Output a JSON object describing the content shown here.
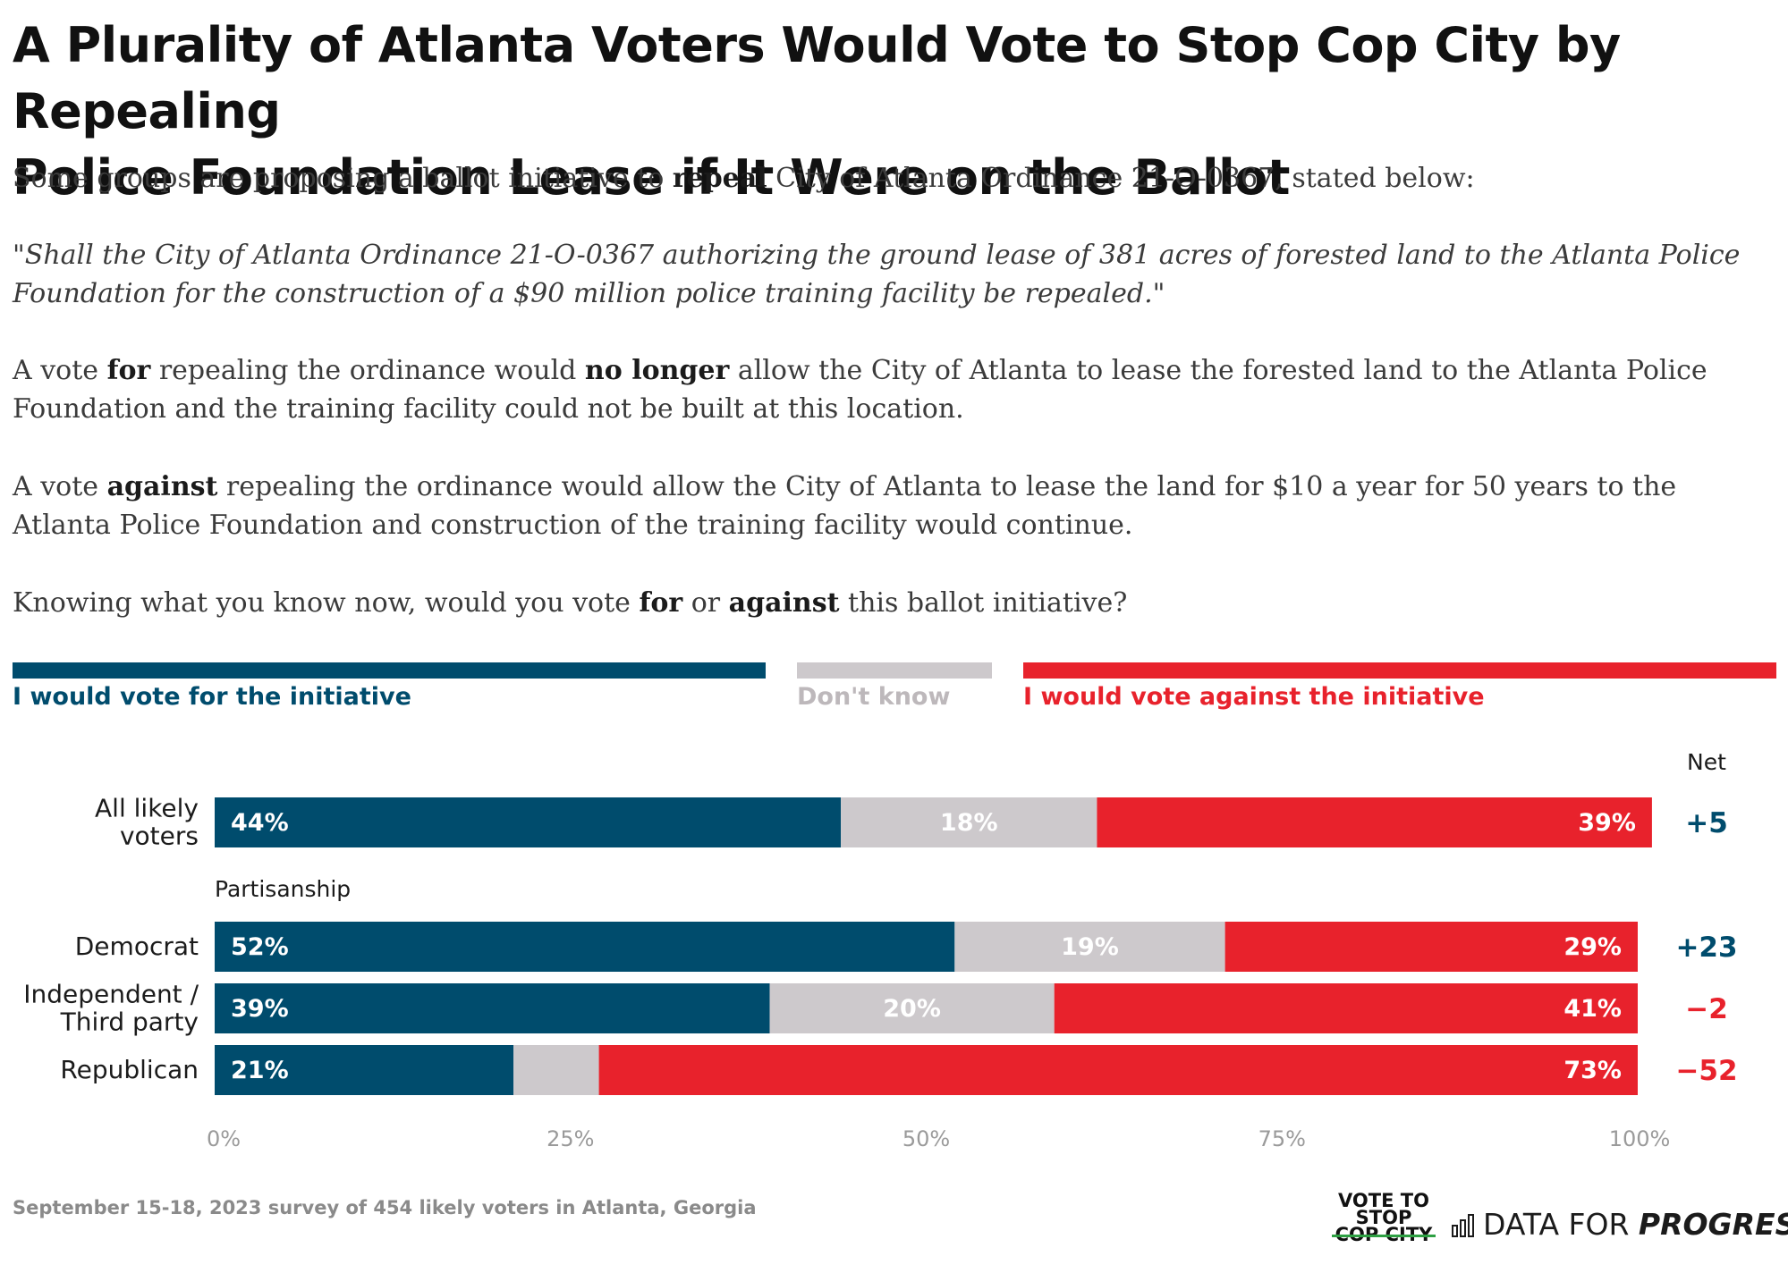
{
  "title": {
    "line1": "A Plurality of Atlanta Voters Would Vote to Stop Cop City by Repealing",
    "line2": "Police Foundation Lease if It Were on the Ballot"
  },
  "intro": {
    "p1_a": "Some groups are proposing a ballot initiative to ",
    "p1_b": "repeal",
    "p1_c": " City of Atlanta Ordinance 21-O-0367, stated below:",
    "quote": "\"Shall the City of Atlanta Ordinance 21-O-0367 authorizing the ground lease of 381 acres of forested land to the Atlanta Police Foundation for the construction of a $90 million police training facility be repealed.\"",
    "p2_a": "A vote ",
    "p2_b": "for",
    "p2_c": " repealing the ordinance would ",
    "p2_d": "no longer",
    "p2_e": " allow the City of Atlanta to lease the forested land to the Atlanta Police Foundation and the training facility could not be built at this location.",
    "p3_a": "A vote ",
    "p3_b": "against",
    "p3_c": " repealing the ordinance would allow the City of Atlanta to lease the land for $10 a year for 50 years to the Atlanta Police Foundation and construction of the training facility would continue.",
    "p4_a": "Knowing what you know now, would you vote ",
    "p4_b": "for",
    "p4_c": " or ",
    "p4_d": "against",
    "p4_e": " this ballot initiative?"
  },
  "colors": {
    "for": "#004c6d",
    "dont_know": "#cdc9cc",
    "against": "#e8222c",
    "dont_know_label": "#bdb8bb"
  },
  "chart_data": {
    "type": "bar",
    "orientation": "horizontal",
    "stacked": true,
    "series_names": [
      "I would vote for the initiative",
      "Don't know",
      "I would vote against the initiative"
    ],
    "net_header": "Net",
    "group_label": "Partisanship",
    "rows": [
      {
        "label": "All likely voters",
        "label_lines": [
          "All likely",
          "voters"
        ],
        "values": [
          44,
          18,
          39
        ],
        "labels": [
          "44%",
          "18%",
          "39%"
        ],
        "net": "+5",
        "net_sign": "positive"
      },
      {
        "label": "Democrat",
        "label_lines": [
          "Democrat"
        ],
        "values": [
          52,
          19,
          29
        ],
        "labels": [
          "52%",
          "19%",
          "29%"
        ],
        "net": "+23",
        "net_sign": "positive"
      },
      {
        "label": "Independent / Third party",
        "label_lines": [
          "Independent /",
          "Third party"
        ],
        "values": [
          39,
          20,
          41
        ],
        "labels": [
          "39%",
          "20%",
          "41%"
        ],
        "net": "−2",
        "net_sign": "negative"
      },
      {
        "label": "Republican",
        "label_lines": [
          "Republican"
        ],
        "values": [
          21,
          6,
          73
        ],
        "labels": [
          "21%",
          "",
          "73%"
        ],
        "net": "−52",
        "net_sign": "negative"
      }
    ],
    "x_ticks": [
      "0%",
      "25%",
      "50%",
      "75%",
      "100%"
    ],
    "xlim": [
      0,
      100
    ]
  },
  "footer": {
    "note": "September 15-18, 2023 survey of 454 likely voters in Atlanta, Georgia",
    "logo_vote_line1": "VOTE TO",
    "logo_vote_line2": "STOP",
    "logo_vote_line3": "COP CITY",
    "logo_dfp_a": "DATA FOR ",
    "logo_dfp_b": "PROGRESS"
  }
}
